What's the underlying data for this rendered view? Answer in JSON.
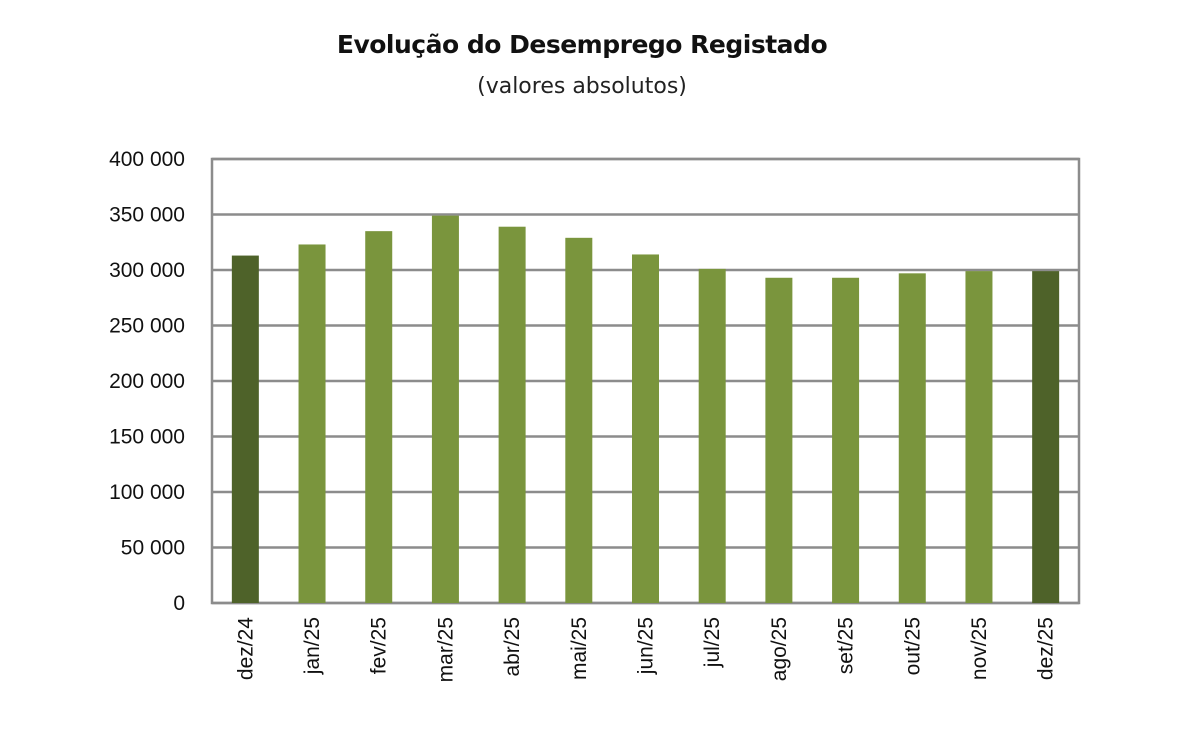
{
  "chart_data": {
    "type": "bar",
    "title": "Evolução do Desemprego Registado",
    "subtitle": "(valores absolutos)",
    "xlabel": "",
    "ylabel": "",
    "ylim": [
      0,
      400000
    ],
    "yticks": [
      0,
      50000,
      100000,
      150000,
      200000,
      250000,
      300000,
      350000,
      400000
    ],
    "ytick_labels": [
      "0",
      "50 000",
      "100 000",
      "150 000",
      "200 000",
      "250 000",
      "300 000",
      "350 000",
      "400 000"
    ],
    "grid": true,
    "categories": [
      "dez/24",
      "jan/25",
      "fev/25",
      "mar/25",
      "abr/25",
      "mai/25",
      "jun/25",
      "jul/25",
      "ago/25",
      "set/25",
      "out/25",
      "nov/25",
      "dez/25"
    ],
    "values": [
      313000,
      323000,
      335000,
      349000,
      339000,
      329000,
      314000,
      301000,
      293000,
      293000,
      297000,
      299000,
      299000
    ],
    "colors": {
      "highlight": "#4e6229",
      "default": "#7a953d",
      "grid": "#8c8c8c"
    },
    "highlighted": [
      "dez/24",
      "dez/25"
    ]
  }
}
